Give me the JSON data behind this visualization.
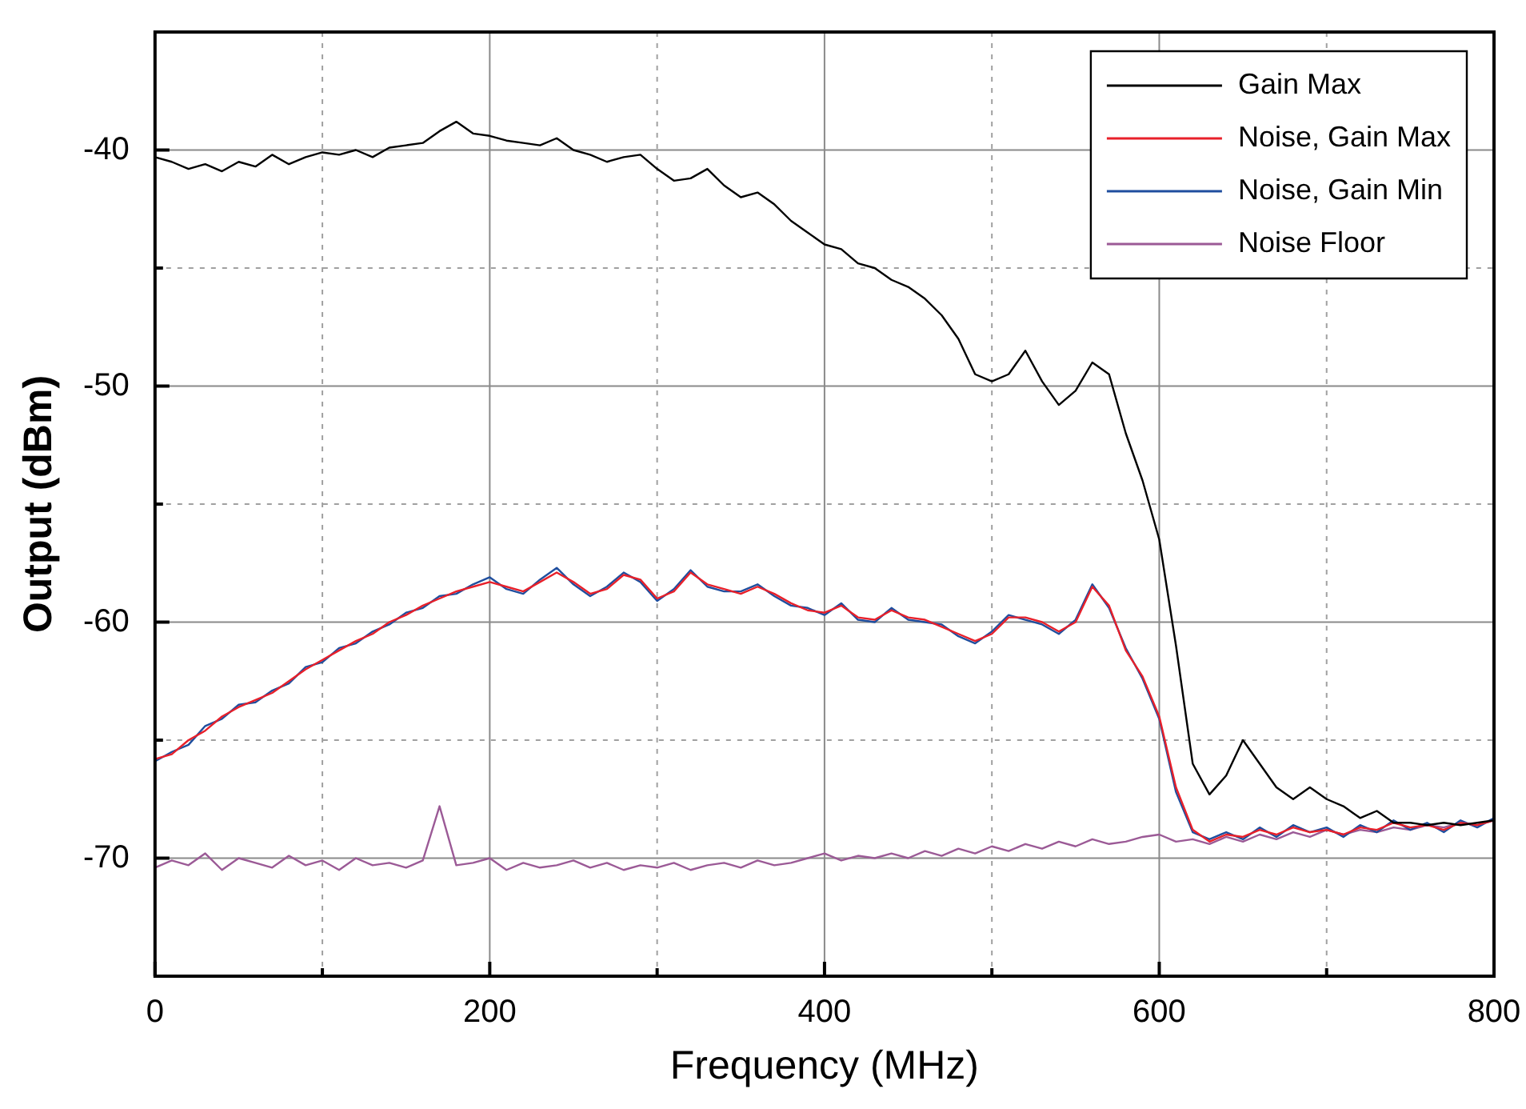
{
  "chart_data": {
    "type": "line",
    "xlabel": "Frequency (MHz)",
    "ylabel": "Output (dBm)",
    "x": [
      0,
      10,
      20,
      30,
      40,
      50,
      60,
      70,
      80,
      90,
      100,
      110,
      120,
      130,
      140,
      150,
      160,
      170,
      180,
      190,
      200,
      210,
      220,
      230,
      240,
      250,
      260,
      270,
      280,
      290,
      300,
      310,
      320,
      330,
      340,
      350,
      360,
      370,
      380,
      390,
      400,
      410,
      420,
      430,
      440,
      450,
      460,
      470,
      480,
      490,
      500,
      510,
      520,
      530,
      540,
      550,
      560,
      570,
      580,
      590,
      600,
      610,
      620,
      630,
      640,
      650,
      660,
      670,
      680,
      690,
      700,
      710,
      720,
      730,
      740,
      750,
      760,
      770,
      780,
      790,
      800
    ],
    "series": [
      {
        "name": "Gain Max",
        "color": "#000000",
        "values": [
          -40.3,
          -40.5,
          -40.8,
          -40.6,
          -40.9,
          -40.5,
          -40.7,
          -40.2,
          -40.6,
          -40.3,
          -40.1,
          -40.2,
          -40.0,
          -40.3,
          -39.9,
          -39.8,
          -39.7,
          -39.2,
          -38.8,
          -39.3,
          -39.4,
          -39.6,
          -39.7,
          -39.8,
          -39.5,
          -40.0,
          -40.2,
          -40.5,
          -40.3,
          -40.2,
          -40.8,
          -41.3,
          -41.2,
          -40.8,
          -41.5,
          -42.0,
          -41.8,
          -42.3,
          -43.0,
          -43.5,
          -44.0,
          -44.2,
          -44.8,
          -45.0,
          -45.5,
          -45.8,
          -46.3,
          -47.0,
          -48.0,
          -49.5,
          -49.8,
          -49.5,
          -48.5,
          -49.8,
          -50.8,
          -50.2,
          -49.0,
          -49.5,
          -52.0,
          -54.0,
          -56.5,
          -61.0,
          -66.0,
          -67.3,
          -66.5,
          -65.0,
          -66.0,
          -67.0,
          -67.5,
          -67.0,
          -67.5,
          -67.8,
          -68.3,
          -68.0,
          -68.5,
          -68.5,
          -68.6,
          -68.5,
          -68.6,
          -68.5,
          -68.4
        ]
      },
      {
        "name": "Noise, Gain Max",
        "color": "#e8202a",
        "values": [
          -65.8,
          -65.6,
          -65.0,
          -64.6,
          -64.0,
          -63.6,
          -63.3,
          -63.0,
          -62.5,
          -62.0,
          -61.6,
          -61.2,
          -60.8,
          -60.5,
          -60.0,
          -59.7,
          -59.3,
          -59.0,
          -58.7,
          -58.5,
          -58.3,
          -58.5,
          -58.7,
          -58.3,
          -57.9,
          -58.3,
          -58.8,
          -58.6,
          -58.0,
          -58.2,
          -59.0,
          -58.7,
          -57.9,
          -58.4,
          -58.6,
          -58.8,
          -58.5,
          -58.8,
          -59.2,
          -59.5,
          -59.6,
          -59.3,
          -59.8,
          -59.9,
          -59.5,
          -59.8,
          -59.9,
          -60.2,
          -60.5,
          -60.8,
          -60.5,
          -59.8,
          -59.8,
          -60.0,
          -60.4,
          -60.0,
          -58.5,
          -59.3,
          -61.2,
          -62.3,
          -64.0,
          -67.0,
          -68.8,
          -69.3,
          -69.0,
          -69.1,
          -68.8,
          -69.0,
          -68.7,
          -68.9,
          -68.8,
          -69.0,
          -68.7,
          -68.8,
          -68.5,
          -68.7,
          -68.6,
          -68.8,
          -68.5,
          -68.6,
          -68.4
        ]
      },
      {
        "name": "Noise, Gain Min",
        "color": "#1f4e9e",
        "values": [
          -65.9,
          -65.5,
          -65.2,
          -64.4,
          -64.1,
          -63.5,
          -63.4,
          -62.9,
          -62.6,
          -61.9,
          -61.7,
          -61.1,
          -60.9,
          -60.4,
          -60.1,
          -59.6,
          -59.4,
          -58.9,
          -58.8,
          -58.4,
          -58.1,
          -58.6,
          -58.8,
          -58.2,
          -57.7,
          -58.4,
          -58.9,
          -58.5,
          -57.9,
          -58.3,
          -59.1,
          -58.6,
          -57.8,
          -58.5,
          -58.7,
          -58.7,
          -58.4,
          -58.9,
          -59.3,
          -59.4,
          -59.7,
          -59.2,
          -59.9,
          -60.0,
          -59.4,
          -59.9,
          -60.0,
          -60.1,
          -60.6,
          -60.9,
          -60.4,
          -59.7,
          -59.9,
          -60.1,
          -60.5,
          -59.9,
          -58.4,
          -59.4,
          -61.1,
          -62.4,
          -64.1,
          -67.2,
          -68.9,
          -69.2,
          -68.9,
          -69.2,
          -68.7,
          -69.1,
          -68.6,
          -68.9,
          -68.7,
          -69.1,
          -68.6,
          -68.9,
          -68.4,
          -68.8,
          -68.5,
          -68.9,
          -68.4,
          -68.7,
          -68.3
        ]
      },
      {
        "name": "Noise Floor",
        "color": "#9b5a96",
        "values": [
          -70.4,
          -70.1,
          -70.3,
          -69.8,
          -70.5,
          -70.0,
          -70.2,
          -70.4,
          -69.9,
          -70.3,
          -70.1,
          -70.5,
          -70.0,
          -70.3,
          -70.2,
          -70.4,
          -70.1,
          -67.8,
          -70.3,
          -70.2,
          -70.0,
          -70.5,
          -70.2,
          -70.4,
          -70.3,
          -70.1,
          -70.4,
          -70.2,
          -70.5,
          -70.3,
          -70.4,
          -70.2,
          -70.5,
          -70.3,
          -70.2,
          -70.4,
          -70.1,
          -70.3,
          -70.2,
          -70.0,
          -69.8,
          -70.1,
          -69.9,
          -70.0,
          -69.8,
          -70.0,
          -69.7,
          -69.9,
          -69.6,
          -69.8,
          -69.5,
          -69.7,
          -69.4,
          -69.6,
          -69.3,
          -69.5,
          -69.2,
          -69.4,
          -69.3,
          -69.1,
          -69.0,
          -69.3,
          -69.2,
          -69.4,
          -69.1,
          -69.3,
          -69.0,
          -69.2,
          -68.9,
          -69.1,
          -68.8,
          -69.0,
          -68.8,
          -68.9,
          -68.7,
          -68.8,
          -68.6,
          -68.7,
          -68.5,
          -68.6,
          -68.4
        ]
      }
    ],
    "xlim": [
      0,
      800
    ],
    "xticks": [
      0,
      {
        "value": 100,
        "label": null
      },
      200,
      {
        "value": 300,
        "label": null
      },
      400,
      {
        "value": 500,
        "label": null
      },
      600,
      {
        "value": 700,
        "label": null
      },
      800
    ],
    "ylim": [
      -75,
      -35
    ],
    "yticks": [
      -70,
      {
        "value": -65,
        "label": null
      },
      -60,
      {
        "value": -55,
        "label": null
      },
      -50,
      {
        "value": -45,
        "label": null
      },
      -40
    ],
    "grid": true,
    "legend": "top right",
    "marker": "none",
    "line_style": "solid"
  }
}
